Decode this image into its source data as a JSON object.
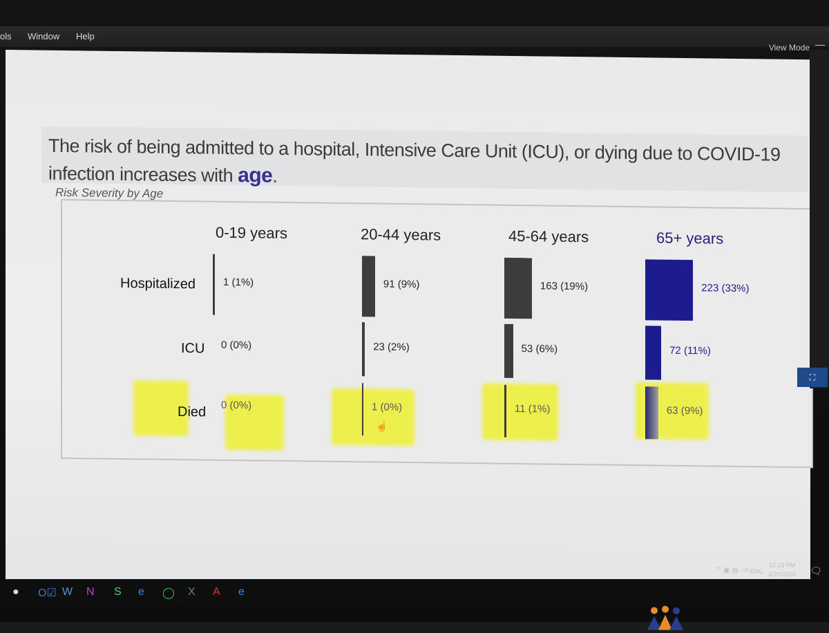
{
  "menu": {
    "tools": "ols",
    "window": "Window",
    "help": "Help"
  },
  "toolbar": {
    "view_mode": "View Mode",
    "close": "—"
  },
  "slide": {
    "title_text": "The risk of being admitted to a hospital, Intensive Care Unit (ICU), or dying due to COVID-19 infection increases with ",
    "title_emph": "age",
    "title_end": ".",
    "subtitle": "Risk Severity by Age"
  },
  "chart_data": {
    "type": "table",
    "title": "Risk Severity by Age",
    "categories": [
      "0-19 years",
      "20-44 years",
      "45-64 years",
      "65+ years"
    ],
    "rows": [
      "Hospitalized",
      "ICU",
      "Died"
    ],
    "series": [
      {
        "name": "Hospitalized",
        "values": [
          1,
          91,
          163,
          223
        ],
        "percents": [
          1,
          9,
          19,
          33
        ],
        "labels": [
          "1 (1%)",
          "91 (9%)",
          "163 (19%)",
          "223 (33%)"
        ]
      },
      {
        "name": "ICU",
        "values": [
          0,
          23,
          53,
          72
        ],
        "percents": [
          0,
          2,
          6,
          11
        ],
        "labels": [
          "0 (0%)",
          "23 (2%)",
          "53 (6%)",
          "72 (11%)"
        ]
      },
      {
        "name": "Died",
        "values": [
          0,
          1,
          11,
          63
        ],
        "percents": [
          0,
          0,
          1,
          9
        ],
        "labels": [
          "0 (0%)",
          "1 (0%)",
          "11 (1%)",
          "63 (9%)"
        ]
      }
    ],
    "colors": {
      "default": "#3d3d3d",
      "highlight": "#1c1c8f",
      "marker": "#eef031"
    }
  },
  "taskbar": {
    "icons": [
      "chat-icon",
      "outlook-icon",
      "word-icon",
      "onenote-icon",
      "skype-icon",
      "edge-icon",
      "whatsapp-icon",
      "excel-icon",
      "acrobat-icon",
      "ie-icon"
    ],
    "lang": "ENG",
    "time": "12:13 PM",
    "date": "4/20/2020"
  }
}
